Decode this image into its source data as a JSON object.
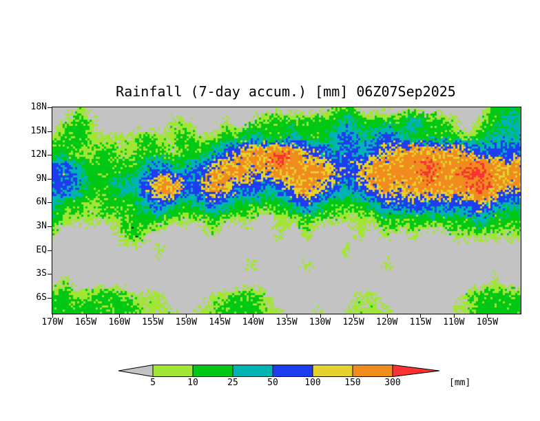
{
  "chart_data": {
    "type": "heatmap",
    "title": "Rainfall (7-day accum.) [mm] 06Z07Sep2025",
    "units": "mm",
    "lon_range": [
      -170,
      -100
    ],
    "lat_range": [
      -8,
      18
    ],
    "levels": [
      5,
      10,
      25,
      50,
      100,
      150,
      300
    ],
    "colors": [
      "#c3c3c3",
      "#a0e632",
      "#00c814",
      "#00b4b4",
      "#1e3cf0",
      "#e6d22d",
      "#f08c1e",
      "#fa3232"
    ],
    "x_ticks": [
      {
        "lon": -170,
        "label": "170W"
      },
      {
        "lon": -165,
        "label": "165W"
      },
      {
        "lon": -160,
        "label": "160W"
      },
      {
        "lon": -155,
        "label": "155W"
      },
      {
        "lon": -150,
        "label": "150W"
      },
      {
        "lon": -145,
        "label": "145W"
      },
      {
        "lon": -140,
        "label": "140W"
      },
      {
        "lon": -135,
        "label": "135W"
      },
      {
        "lon": -130,
        "label": "130W"
      },
      {
        "lon": -125,
        "label": "125W"
      },
      {
        "lon": -120,
        "label": "120W"
      },
      {
        "lon": -115,
        "label": "115W"
      },
      {
        "lon": -110,
        "label": "110W"
      },
      {
        "lon": -105,
        "label": "105W"
      }
    ],
    "y_ticks": [
      {
        "lat": 18,
        "label": "18N"
      },
      {
        "lat": 15,
        "label": "15N"
      },
      {
        "lat": 12,
        "label": "12N"
      },
      {
        "lat": 9,
        "label": "9N"
      },
      {
        "lat": 6,
        "label": "6N"
      },
      {
        "lat": 3,
        "label": "3N"
      },
      {
        "lat": 0,
        "label": "EQ"
      },
      {
        "lat": -3,
        "label": "3S"
      },
      {
        "lat": -6,
        "label": "6S"
      }
    ],
    "colorbar": {
      "labels": [
        "5",
        "10",
        "25",
        "50",
        "100",
        "150",
        "300"
      ],
      "unit_label": "[mm]"
    },
    "grid": {
      "lon_start": -170,
      "lon_step": 2,
      "lat_start": 18,
      "lat_step": -2,
      "values": [
        [
          0,
          0,
          7,
          0,
          0,
          0,
          0,
          0,
          0,
          0,
          0,
          0,
          0,
          0,
          0,
          0,
          0,
          0,
          0,
          0,
          0,
          7,
          15,
          0,
          0,
          0,
          0,
          0,
          0,
          0,
          0,
          0,
          0,
          15,
          15
        ],
        [
          0,
          7,
          15,
          7,
          0,
          0,
          0,
          0,
          0,
          7,
          7,
          0,
          0,
          7,
          0,
          7,
          15,
          15,
          15,
          15,
          15,
          15,
          35,
          15,
          15,
          15,
          15,
          35,
          15,
          15,
          7,
          0,
          7,
          15,
          35
        ],
        [
          7,
          15,
          15,
          7,
          7,
          7,
          7,
          15,
          7,
          7,
          15,
          7,
          7,
          15,
          15,
          35,
          15,
          15,
          35,
          15,
          15,
          35,
          70,
          35,
          35,
          70,
          35,
          15,
          15,
          15,
          15,
          7,
          15,
          35,
          35
        ],
        [
          15,
          15,
          7,
          7,
          15,
          7,
          7,
          15,
          15,
          7,
          15,
          15,
          35,
          70,
          120,
          200,
          200,
          350,
          200,
          120,
          70,
          35,
          70,
          35,
          70,
          120,
          200,
          200,
          200,
          200,
          200,
          120,
          70,
          70,
          70
        ],
        [
          70,
          70,
          35,
          15,
          15,
          15,
          15,
          35,
          70,
          35,
          35,
          70,
          120,
          200,
          200,
          120,
          120,
          200,
          200,
          200,
          200,
          120,
          70,
          120,
          200,
          200,
          200,
          200,
          350,
          200,
          200,
          350,
          350,
          200,
          200
        ],
        [
          70,
          70,
          35,
          15,
          15,
          35,
          35,
          70,
          200,
          200,
          70,
          70,
          200,
          120,
          70,
          70,
          35,
          70,
          120,
          200,
          120,
          70,
          35,
          70,
          120,
          200,
          120,
          200,
          200,
          200,
          200,
          200,
          350,
          200,
          120
        ],
        [
          35,
          15,
          15,
          7,
          15,
          15,
          15,
          35,
          70,
          35,
          15,
          35,
          70,
          35,
          15,
          15,
          15,
          15,
          35,
          70,
          35,
          15,
          15,
          15,
          35,
          70,
          70,
          70,
          70,
          70,
          70,
          70,
          120,
          70,
          35
        ],
        [
          15,
          7,
          7,
          7,
          7,
          7,
          15,
          15,
          15,
          7,
          7,
          7,
          15,
          7,
          7,
          7,
          0,
          7,
          7,
          15,
          7,
          7,
          7,
          7,
          7,
          15,
          15,
          15,
          15,
          15,
          15,
          15,
          35,
          15,
          15
        ],
        [
          7,
          0,
          0,
          0,
          0,
          7,
          15,
          7,
          0,
          0,
          0,
          0,
          7,
          0,
          0,
          0,
          0,
          7,
          0,
          7,
          0,
          0,
          0,
          7,
          0,
          7,
          0,
          7,
          0,
          0,
          7,
          7,
          7,
          7,
          7
        ],
        [
          0,
          0,
          0,
          0,
          0,
          0,
          0,
          0,
          7,
          0,
          0,
          0,
          0,
          0,
          0,
          0,
          0,
          0,
          0,
          0,
          0,
          0,
          7,
          0,
          0,
          0,
          0,
          0,
          0,
          0,
          0,
          0,
          0,
          0,
          0
        ],
        [
          0,
          0,
          0,
          0,
          0,
          0,
          0,
          0,
          0,
          0,
          0,
          0,
          0,
          0,
          0,
          7,
          0,
          0,
          0,
          7,
          0,
          0,
          0,
          0,
          0,
          7,
          0,
          0,
          0,
          0,
          0,
          0,
          0,
          0,
          0
        ],
        [
          0,
          7,
          0,
          0,
          0,
          0,
          0,
          0,
          0,
          0,
          0,
          0,
          0,
          0,
          0,
          0,
          0,
          0,
          0,
          0,
          0,
          0,
          0,
          0,
          0,
          0,
          0,
          0,
          0,
          0,
          0,
          0,
          0,
          7,
          0
        ],
        [
          15,
          15,
          7,
          15,
          15,
          15,
          7,
          7,
          7,
          0,
          0,
          0,
          7,
          7,
          15,
          15,
          7,
          0,
          0,
          0,
          0,
          0,
          0,
          7,
          7,
          0,
          0,
          0,
          0,
          0,
          0,
          7,
          15,
          15,
          15
        ],
        [
          15,
          15,
          15,
          15,
          7,
          15,
          15,
          7,
          7,
          7,
          0,
          7,
          7,
          15,
          15,
          15,
          7,
          7,
          0,
          0,
          7,
          0,
          7,
          7,
          7,
          7,
          0,
          0,
          0,
          0,
          7,
          7,
          15,
          15,
          15
        ]
      ]
    },
    "islands": [
      {
        "lon": -158.1,
        "lat": 2.8
      },
      {
        "lon": -157.4,
        "lat": 1.7
      }
    ]
  }
}
